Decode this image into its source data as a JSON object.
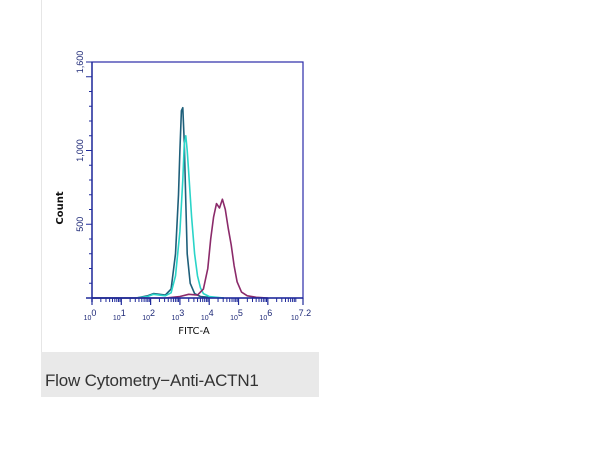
{
  "caption": "Flow Cytometry−Anti-ACTN1",
  "chart_data": {
    "type": "line",
    "title": "",
    "xlabel": "FITC-A",
    "ylabel": "Count",
    "x_scale": "log",
    "xlim": [
      0,
      7.2
    ],
    "ylim": [
      0,
      1600
    ],
    "x_ticks": [
      {
        "value": 0,
        "base": "10",
        "exp": "0"
      },
      {
        "value": 1,
        "base": "10",
        "exp": "1"
      },
      {
        "value": 2,
        "base": "10",
        "exp": "2"
      },
      {
        "value": 3,
        "base": "10",
        "exp": "3"
      },
      {
        "value": 4,
        "base": "10",
        "exp": "4"
      },
      {
        "value": 5,
        "base": "10",
        "exp": "5"
      },
      {
        "value": 6,
        "base": "10",
        "exp": "6"
      },
      {
        "value": 7.2,
        "base": "10",
        "exp": "7.2"
      }
    ],
    "y_ticks": [
      {
        "value": 500,
        "label": "500"
      },
      {
        "value": 1000,
        "label": "1,000"
      },
      {
        "value": 1600,
        "label": "1,600"
      }
    ],
    "grid": false,
    "legend": "none",
    "colors": {
      "axis": "#1f2a9a",
      "frame": "#2a2aa8"
    },
    "series": [
      {
        "color": "#1e5f7a",
        "x": [
          0,
          1.5,
          1.9,
          2.1,
          2.3,
          2.5,
          2.7,
          2.85,
          2.95,
          3.0,
          3.05,
          3.1,
          3.15,
          3.2,
          3.25,
          3.35,
          3.5,
          3.7,
          4.0,
          4.5
        ],
        "y": [
          0,
          0,
          15,
          30,
          25,
          20,
          60,
          300,
          700,
          1000,
          1270,
          1290,
          1050,
          650,
          300,
          100,
          30,
          10,
          5,
          0
        ]
      },
      {
        "color": "#2ad4c8",
        "x": [
          0,
          1.5,
          1.9,
          2.1,
          2.3,
          2.5,
          2.7,
          2.85,
          3.0,
          3.1,
          3.15,
          3.2,
          3.25,
          3.3,
          3.4,
          3.5,
          3.6,
          3.7,
          3.8,
          4.0,
          4.5
        ],
        "y": [
          0,
          0,
          10,
          25,
          20,
          15,
          35,
          150,
          450,
          800,
          1050,
          1100,
          1000,
          850,
          550,
          300,
          150,
          70,
          30,
          10,
          0
        ]
      },
      {
        "color": "#8b2a6a",
        "x": [
          0,
          2.5,
          3.0,
          3.3,
          3.6,
          3.8,
          3.95,
          4.05,
          4.15,
          4.25,
          4.35,
          4.45,
          4.55,
          4.65,
          4.75,
          4.85,
          4.95,
          5.1,
          5.3,
          5.6,
          6.0
        ],
        "y": [
          0,
          0,
          10,
          25,
          20,
          60,
          200,
          400,
          550,
          640,
          610,
          670,
          600,
          470,
          360,
          220,
          110,
          40,
          15,
          5,
          0
        ]
      }
    ]
  }
}
